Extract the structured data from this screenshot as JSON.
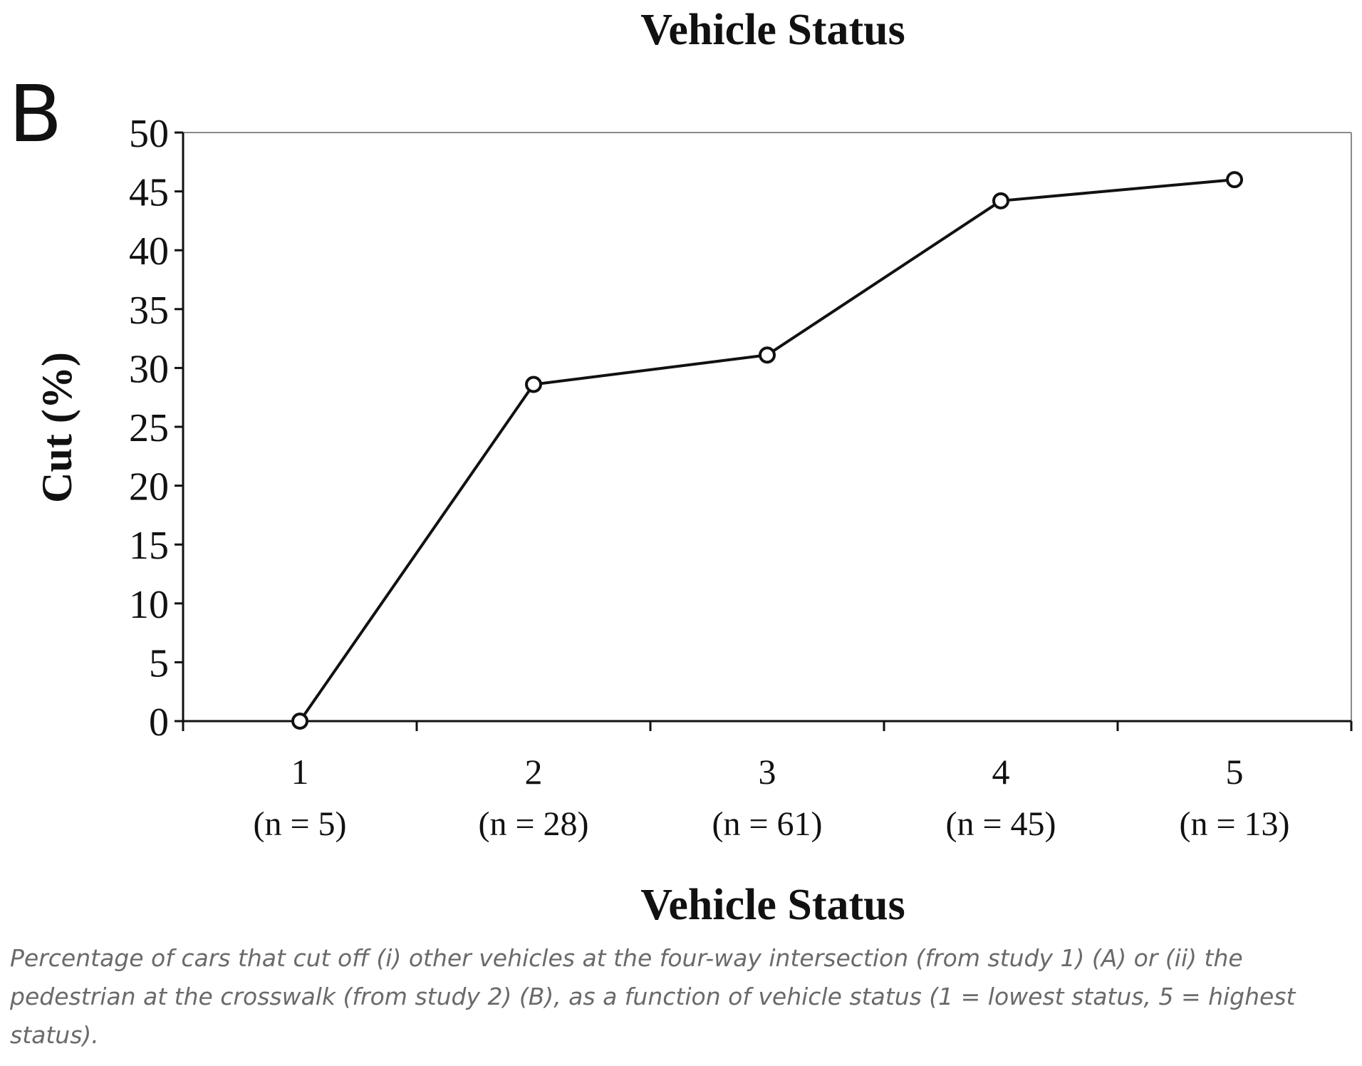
{
  "chart_data": {
    "type": "line",
    "panel_label": "B",
    "title": "Vehicle Status",
    "xlabel": "Vehicle Status",
    "ylabel": "Cut (%)",
    "ylim": [
      0,
      50
    ],
    "yticks": [
      0,
      5,
      10,
      15,
      20,
      25,
      30,
      35,
      40,
      45,
      50
    ],
    "categories": [
      "1",
      "2",
      "3",
      "4",
      "5"
    ],
    "category_sublabels": [
      "(n = 5)",
      "(n = 28)",
      "(n = 61)",
      "(n = 45)",
      "(n = 13)"
    ],
    "series": [
      {
        "values": [
          0,
          28.6,
          31.1,
          44.2,
          46.0
        ]
      }
    ],
    "marker": "open-circle",
    "grid": false,
    "line_color": "#111111"
  },
  "caption": "Percentage of cars that cut off (i) other vehicles at the four-way intersection (from study 1) (A) or (ii) the pedestrian at the crosswalk (from study 2) (B), as a function of vehicle status (1 = lowest status, 5 = highest status)."
}
